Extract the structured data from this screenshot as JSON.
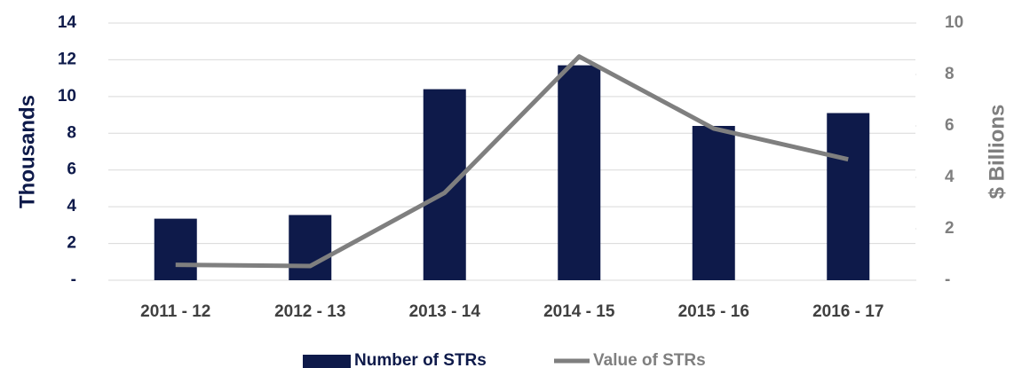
{
  "chart_data": {
    "type": "bar",
    "categories": [
      "2011 - 12",
      "2012 - 13",
      "2013 - 14",
      "2014 - 15",
      "2015 - 16",
      "2016 - 17"
    ],
    "series": [
      {
        "name": "Number of STRs",
        "color": "#0e1a4a",
        "values": [
          3.35,
          3.55,
          10.4,
          11.7,
          8.4,
          9.1
        ]
      },
      {
        "name": "Value of STRs",
        "color": "#7f7f7f",
        "type": "line",
        "axis": "y2",
        "values": [
          0.6,
          0.55,
          3.4,
          8.7,
          5.9,
          4.7
        ]
      }
    ],
    "ylabel": "Thousands",
    "y2label": "$ Billions",
    "ylim": [
      0,
      14
    ],
    "yticks": [
      {
        "value": 0,
        "label": "-"
      },
      2,
      4,
      6,
      8,
      10,
      12,
      14
    ],
    "y2lim": [
      0,
      10
    ],
    "y2ticks": [
      {
        "value": 0,
        "label": "-"
      },
      2,
      4,
      6,
      8,
      10
    ],
    "grid": true,
    "legend": "bottom"
  }
}
